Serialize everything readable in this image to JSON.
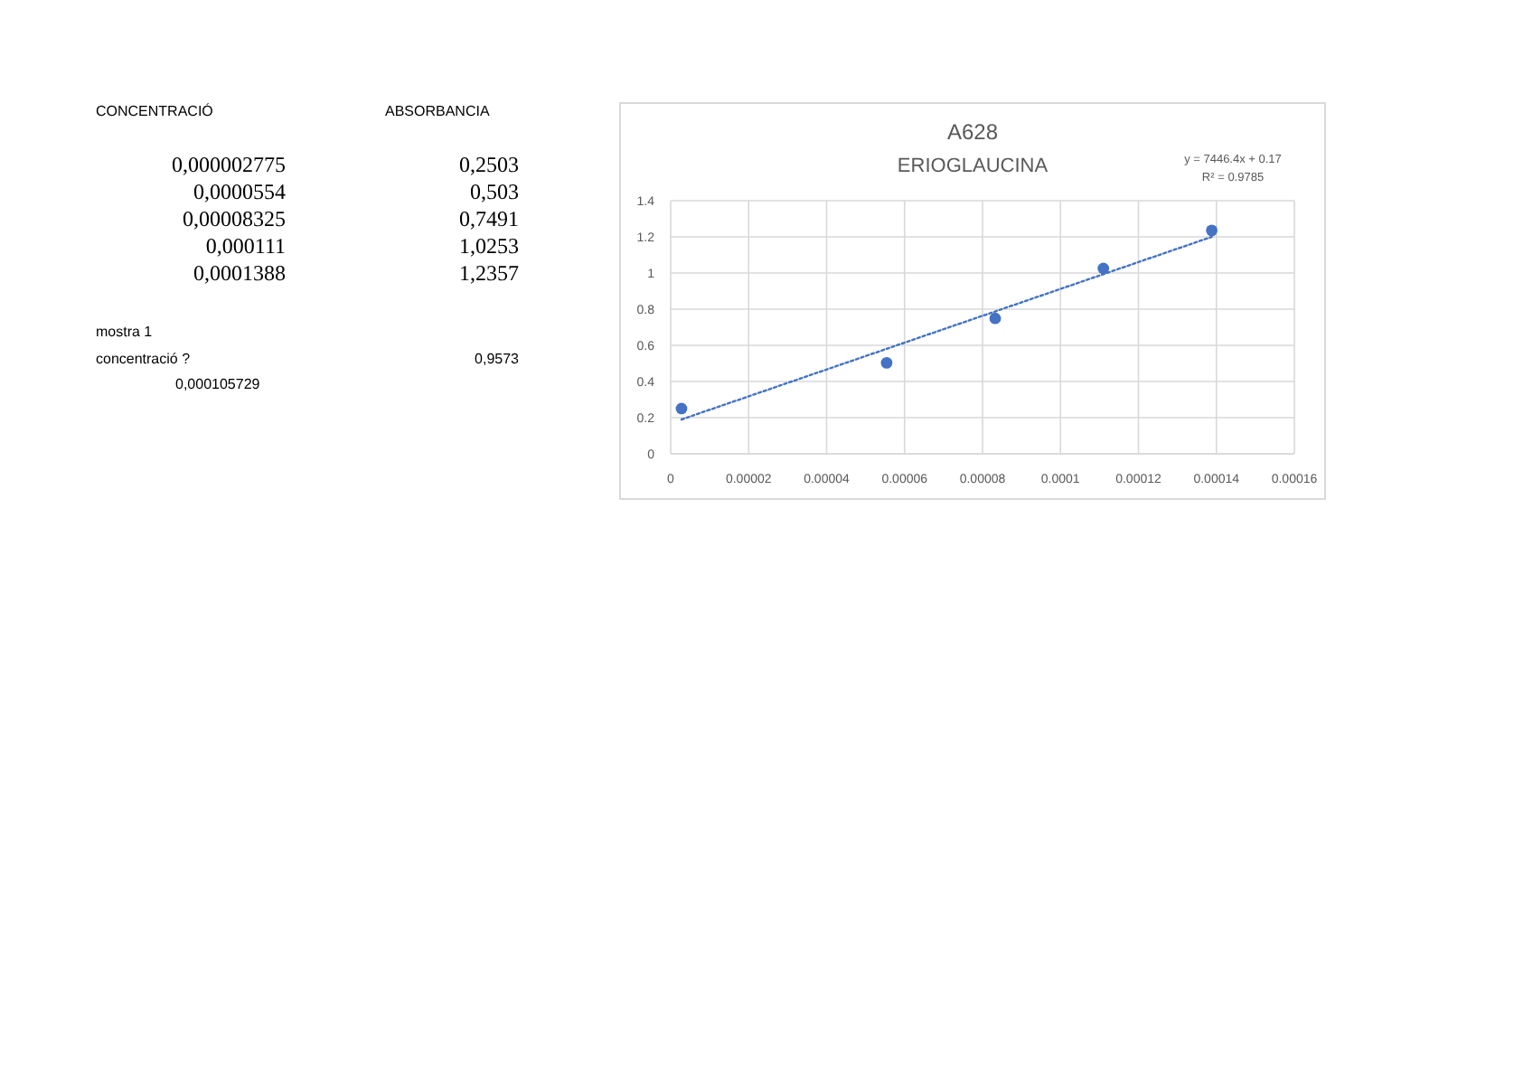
{
  "chart_data": [
    {
      "type": "other",
      "annotations": [
        "CONCENTRACIÓ",
        "ABSORBANCIA",
        "0,000002775",
        "0,2503",
        "0,0000554",
        "0,503",
        "0,00008325",
        "0,7491",
        "0,000111",
        "1,0253",
        "0,0001388",
        "1,2357",
        "mostra 1",
        "concentració ?",
        "0,9573",
        "0,000105729"
      ]
    },
    {
      "type": "scatter",
      "title": "A628",
      "subtitle": "ERIOGLAUCINA",
      "annotations": [
        "y = 7446.4x + 0.17",
        "R² = 0.9785"
      ],
      "grid": true,
      "xlim": [
        0,
        0.00016
      ],
      "xticks": [
        0,
        {
          "value": 2e-05,
          "label": "0.00002"
        },
        {
          "value": 4e-05,
          "label": "0.00004"
        },
        {
          "value": 6e-05,
          "label": "0.00006"
        },
        {
          "value": 8e-05,
          "label": "0.00008"
        },
        0.0001,
        0.00012,
        0.00014,
        0.00016
      ],
      "ylim": [
        0,
        1.4
      ],
      "yticks": [
        0,
        0.2,
        0.4,
        0.6,
        0.8,
        1,
        1.2,
        1.4
      ],
      "series": [
        {
          "type": "scatter",
          "color": "#4472c4",
          "marker": "circle",
          "x": [
            2.775e-06,
            5.54e-05,
            8.325e-05,
            0.000111,
            0.0001388
          ],
          "values": [
            0.2503,
            0.503,
            0.7491,
            1.0253,
            1.2357
          ]
        },
        {
          "type": "line",
          "color": "#4472c4",
          "marker": "none",
          "line_style": "dotted",
          "x": [
            2.775e-06,
            0.0001388
          ],
          "values": [
            0.19,
            1.2
          ]
        }
      ]
    }
  ]
}
